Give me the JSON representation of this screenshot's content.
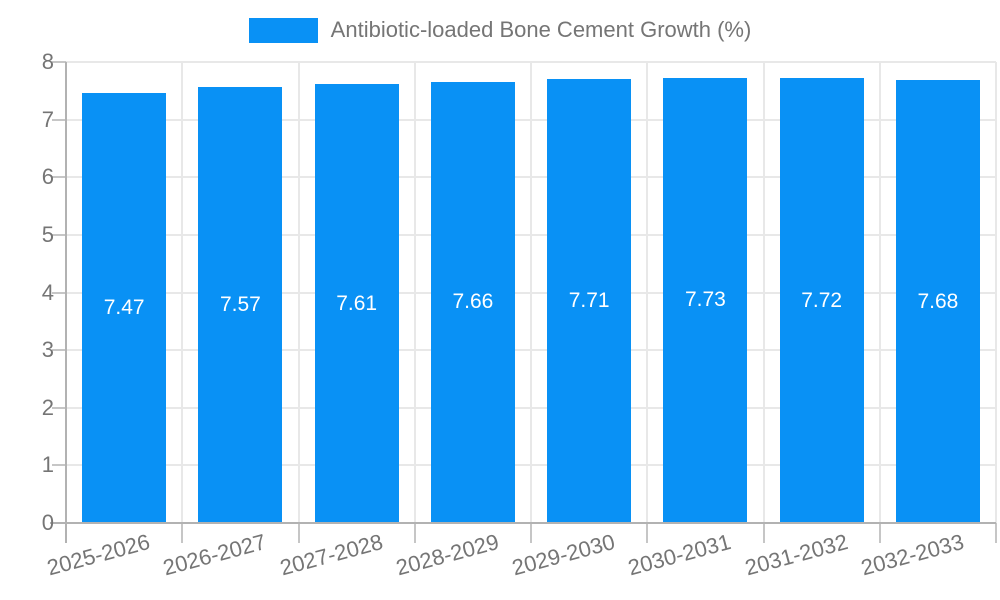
{
  "chart_data": {
    "type": "bar",
    "title": "Antibiotic-loaded Bone Cement Growth (%)",
    "categories": [
      "2025-2026",
      "2026-2027",
      "2027-2028",
      "2028-2029",
      "2029-2030",
      "2030-2031",
      "2031-2032",
      "2032-2033"
    ],
    "values": [
      7.47,
      7.57,
      7.61,
      7.66,
      7.71,
      7.73,
      7.72,
      7.68
    ],
    "value_labels": [
      "7.47",
      "7.57",
      "7.61",
      "7.66",
      "7.71",
      "7.73",
      "7.72",
      "7.68"
    ],
    "xlabel": "",
    "ylabel": "",
    "ylim": [
      0,
      8
    ],
    "yticks": [
      0,
      1,
      2,
      3,
      4,
      5,
      6,
      7,
      8
    ],
    "grid": true,
    "legend_position": "top-center",
    "bar_color": "#0991f5",
    "value_label_color": "#ffffff",
    "axis_text_color": "#757575",
    "x_label_rotation_deg": -15
  }
}
